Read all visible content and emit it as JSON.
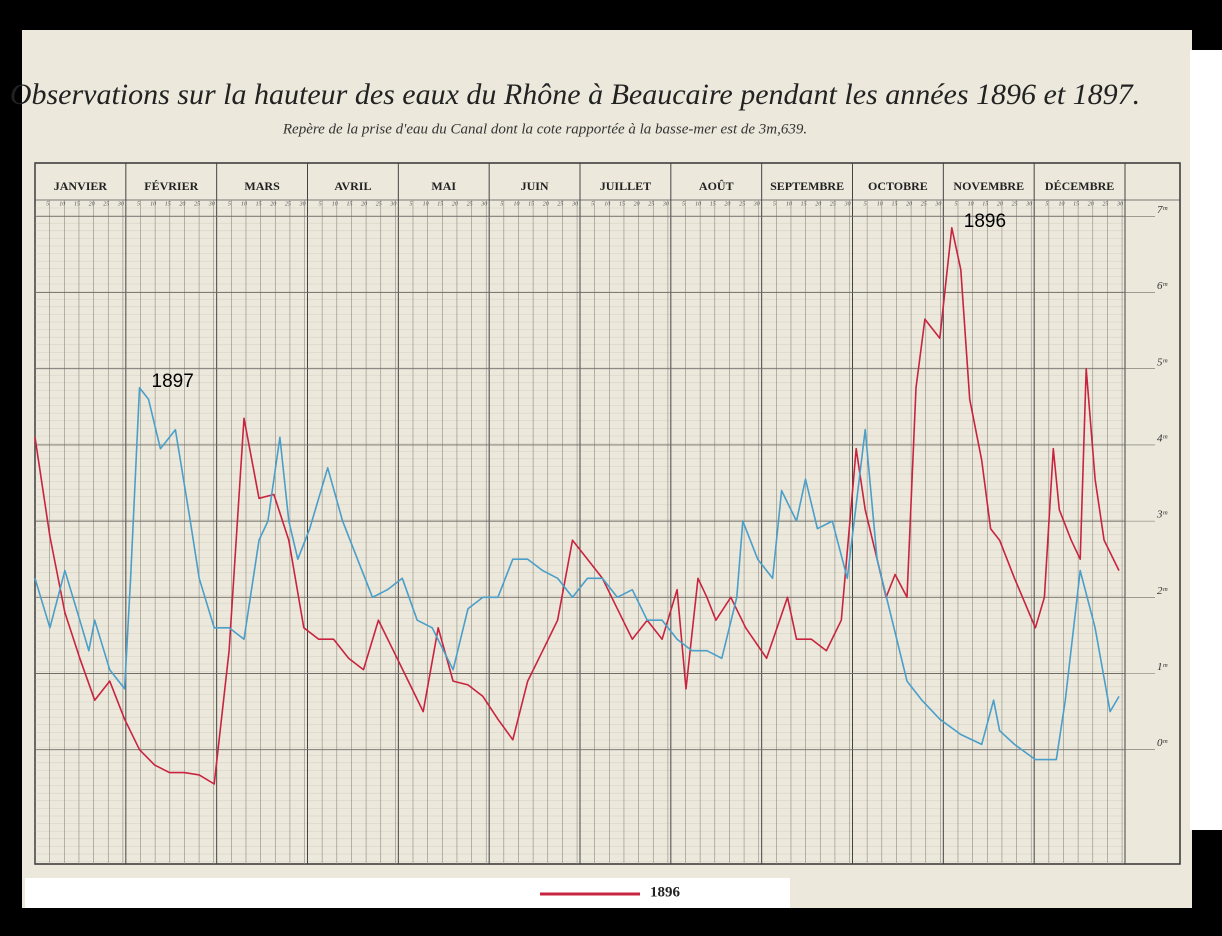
{
  "chart_data": {
    "type": "line",
    "title": "Observations sur la hauteur des eaux du Rhône à Beaucaire pendant les années 1896 et 1897.",
    "subtitle": "Repère de la prise d'eau du Canal dont la cote rapportée à la basse-mer est de 3m,639.",
    "months": [
      "JANVIER",
      "FÉVRIER",
      "MARS",
      "AVRIL",
      "MAI",
      "JUIN",
      "JUILLET",
      "AOÛT",
      "SEPTEMBRE",
      "OCTOBRE",
      "NOVEMBRE",
      "DÉCEMBRE"
    ],
    "day_ticks": [
      5,
      10,
      15,
      20,
      25,
      30
    ],
    "xlim": [
      0,
      365
    ],
    "ylim": [
      -1.5,
      7.7
    ],
    "yticks": [
      {
        "value": 0,
        "label": "0ᵐ"
      },
      {
        "value": 1,
        "label": "1ᵐ"
      },
      {
        "value": 2,
        "label": "2ᵐ"
      },
      {
        "value": 3,
        "label": "3ᵐ"
      },
      {
        "value": 4,
        "label": "4ᵐ"
      },
      {
        "value": 5,
        "label": "5ᵐ"
      },
      {
        "value": 6,
        "label": "6ᵐ"
      },
      {
        "value": 7,
        "label": "7ᵐ"
      }
    ],
    "grid": true,
    "series": [
      {
        "name": "1896",
        "color": "#c8243f",
        "x": [
          0,
          5,
          10,
          15,
          20,
          25,
          30,
          35,
          40,
          45,
          50,
          55,
          60,
          65,
          70,
          75,
          80,
          85,
          90,
          95,
          100,
          105,
          110,
          115,
          120,
          125,
          130,
          135,
          140,
          145,
          150,
          155,
          160,
          165,
          170,
          175,
          180,
          185,
          190,
          195,
          200,
          205,
          210,
          215,
          218,
          222,
          225,
          228,
          233,
          238,
          245,
          252,
          255,
          260,
          265,
          270,
          275,
          278,
          282,
          285,
          288,
          292,
          295,
          298,
          303,
          307,
          310,
          313,
          317,
          320,
          323,
          328,
          335,
          338,
          341,
          343,
          347,
          350,
          352,
          355,
          358,
          363
        ],
        "values": [
          4.1,
          2.8,
          1.8,
          1.2,
          0.65,
          0.9,
          0.4,
          0,
          -0.2,
          -0.3,
          -0.3,
          -0.33,
          -0.45,
          1.3,
          4.35,
          3.3,
          3.35,
          2.75,
          1.6,
          1.45,
          1.45,
          1.2,
          1.05,
          1.7,
          1.3,
          0.9,
          0.5,
          1.6,
          0.9,
          0.85,
          0.7,
          0.4,
          0.13,
          0.9,
          1.3,
          1.7,
          2.75,
          2.5,
          2.25,
          1.85,
          1.45,
          1.7,
          1.45,
          2.1,
          0.8,
          2.25,
          2.0,
          1.7,
          2.0,
          1.6,
          1.2,
          2.0,
          1.45,
          1.45,
          1.3,
          1.7,
          3.95,
          3.15,
          2.5,
          2.0,
          2.3,
          2.0,
          4.75,
          5.65,
          5.4,
          6.85,
          6.3,
          4.6,
          3.8,
          2.9,
          2.75,
          2.25,
          1.6,
          2.0,
          3.95,
          3.15,
          2.75,
          2.5,
          5.0,
          3.55,
          2.75,
          2.35
        ]
      },
      {
        "name": "1897",
        "color": "#4a9fc9",
        "x": [
          0,
          5,
          10,
          15,
          18,
          20,
          25,
          30,
          32,
          35,
          38,
          42,
          47,
          52,
          55,
          60,
          65,
          70,
          75,
          78,
          82,
          85,
          88,
          92,
          95,
          98,
          103,
          108,
          113,
          118,
          123,
          128,
          133,
          140,
          145,
          150,
          155,
          160,
          165,
          170,
          175,
          180,
          185,
          190,
          195,
          200,
          205,
          210,
          215,
          220,
          225,
          230,
          235,
          237,
          242,
          247,
          250,
          255,
          258,
          262,
          267,
          272,
          278,
          282,
          287,
          292,
          297,
          303,
          310,
          317,
          321,
          323,
          328,
          335,
          342,
          345,
          350,
          355,
          360,
          363
        ],
        "values": [
          2.25,
          1.6,
          2.35,
          1.7,
          1.3,
          1.7,
          1.05,
          0.8,
          2.25,
          4.75,
          4.6,
          3.95,
          4.2,
          3.0,
          2.25,
          1.6,
          1.6,
          1.45,
          2.75,
          3.0,
          4.1,
          3.0,
          2.5,
          2.9,
          3.3,
          3.7,
          3.0,
          2.5,
          2.0,
          2.1,
          2.25,
          1.7,
          1.6,
          1.05,
          1.85,
          2.0,
          2.0,
          2.5,
          2.5,
          2.35,
          2.25,
          2.0,
          2.25,
          2.25,
          2.0,
          2.1,
          1.7,
          1.7,
          1.45,
          1.3,
          1.3,
          1.2,
          2.0,
          3.0,
          2.5,
          2.25,
          3.4,
          3.0,
          3.55,
          2.9,
          3.0,
          2.25,
          4.2,
          2.5,
          1.7,
          0.9,
          0.65,
          0.4,
          0.2,
          0.07,
          0.65,
          0.25,
          0.07,
          -0.13,
          -0.13,
          0.65,
          2.35,
          1.6,
          0.5,
          0.7
        ]
      }
    ]
  }
}
